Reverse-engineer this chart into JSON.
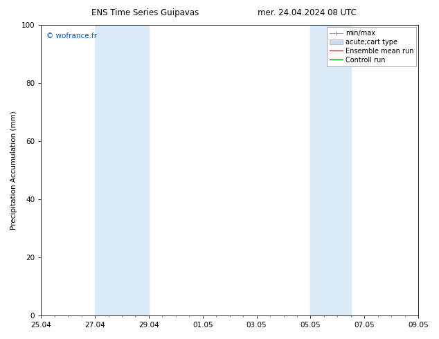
{
  "title_left": "ENS Time Series Guipavas",
  "title_right": "mer. 24.04.2024 08 UTC",
  "ylabel": "Precipitation Accumulation (mm)",
  "ylim": [
    0,
    100
  ],
  "yticks": [
    0,
    20,
    40,
    60,
    80,
    100
  ],
  "x_tick_labels": [
    "25.04",
    "27.04",
    "29.04",
    "01.05",
    "03.05",
    "05.05",
    "07.05",
    "09.05"
  ],
  "x_tick_positions": [
    0,
    2,
    4,
    6,
    8,
    10,
    12,
    14
  ],
  "x_total_days": 14,
  "shaded_bands": [
    {
      "x_start": 2.0,
      "x_end": 4.0
    },
    {
      "x_start": 10.0,
      "x_end": 11.5
    }
  ],
  "shaded_color": "#daeaf7",
  "watermark_text": "© wofrance.fr",
  "watermark_color": "#0055cc",
  "legend_labels": [
    "min/max",
    "acute;cart type",
    "Ensemble mean run",
    "Controll run"
  ],
  "legend_colors": [
    "#999999",
    "#ccddef",
    "red",
    "green"
  ],
  "bg_color": "#ffffff",
  "font_size": 7.5,
  "title_fontsize": 8.5
}
